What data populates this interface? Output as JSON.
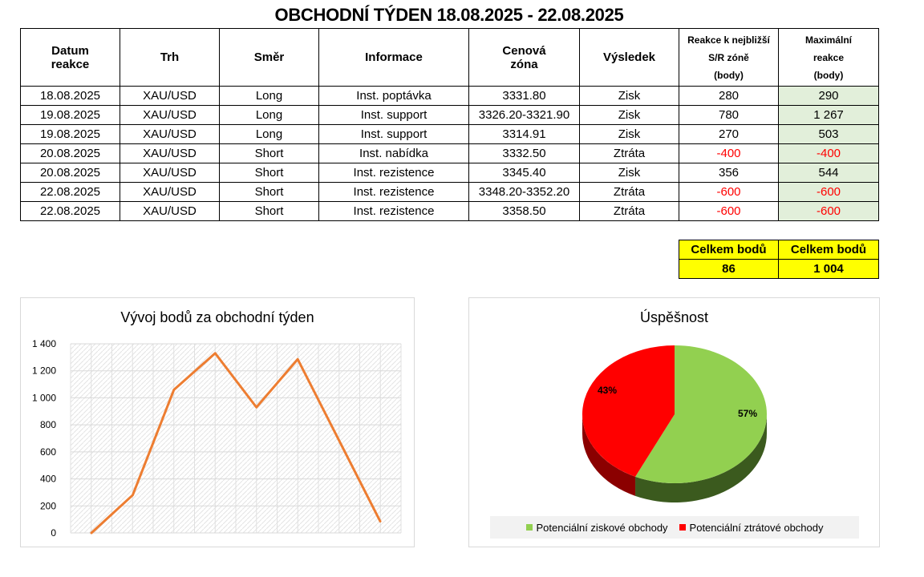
{
  "title": "OBCHODNÍ TÝDEN 18.08.2025 - 22.08.2025",
  "table": {
    "headers": {
      "datum_1": "Datum",
      "datum_2": "reakce",
      "trh": "Trh",
      "smer": "Směr",
      "informace": "Informace",
      "zona_1": "Cenová",
      "zona_2": "zóna",
      "vysledek": "Výsledek",
      "reakce_1": "Reakce k nejbližší",
      "reakce_2": "S/R zóně",
      "reakce_3": "(body)",
      "max_1": "Maximální",
      "max_2": "reakce",
      "max_3": "(body)"
    },
    "rows": [
      {
        "date": "18.08.2025",
        "market": "XAU/USD",
        "direction": "Long",
        "info": "Inst. poptávka",
        "zone": "3331.80",
        "result": "Zisk",
        "reaction": "280",
        "max": "290"
      },
      {
        "date": "19.08.2025",
        "market": "XAU/USD",
        "direction": "Long",
        "info": "Inst. support",
        "zone": "3326.20-3321.90",
        "result": "Zisk",
        "reaction": "780",
        "max": "1 267"
      },
      {
        "date": "19.08.2025",
        "market": "XAU/USD",
        "direction": "Long",
        "info": "Inst. support",
        "zone": "3314.91",
        "result": "Zisk",
        "reaction": "270",
        "max": "503"
      },
      {
        "date": "20.08.2025",
        "market": "XAU/USD",
        "direction": "Short",
        "info": "Inst. nabídka",
        "zone": "3332.50",
        "result": "Ztráta",
        "reaction": "-400",
        "max": "-400"
      },
      {
        "date": "20.08.2025",
        "market": "XAU/USD",
        "direction": "Short",
        "info": "Inst. rezistence",
        "zone": "3345.40",
        "result": "Zisk",
        "reaction": "356",
        "max": "544"
      },
      {
        "date": "22.08.2025",
        "market": "XAU/USD",
        "direction": "Short",
        "info": "Inst. rezistence",
        "zone": "3348.20-3352.20",
        "result": "Ztráta",
        "reaction": "-600",
        "max": "-600"
      },
      {
        "date": "22.08.2025",
        "market": "XAU/USD",
        "direction": "Short",
        "info": "Inst. rezistence",
        "zone": "3358.50",
        "result": "Ztráta",
        "reaction": "-600",
        "max": "-600"
      }
    ]
  },
  "totals": {
    "label_1": "Celkem bodů",
    "value_1": "86",
    "label_2": "Celkem bodů",
    "value_2": "1 004"
  },
  "colors": {
    "line": "#ed7d31",
    "pie_win": "#92d050",
    "pie_win_dark": "#3b5a1e",
    "pie_loss": "#ff0000",
    "pie_loss_dark": "#8b0000",
    "max_col_bg": "#e2efda",
    "totals_bg": "#ffff00"
  },
  "chart_data": [
    {
      "type": "line",
      "title": "Vývoj bodů za obchodní týden",
      "x": [
        0,
        1,
        2,
        3,
        4,
        5,
        6,
        7
      ],
      "series": [
        {
          "values": [
            0,
            280,
            1060,
            1330,
            930,
            1286,
            686,
            86
          ]
        }
      ],
      "ylim": [
        0,
        1400
      ],
      "yticks": [
        "0",
        "200",
        "400",
        "600",
        "800",
        "1 000",
        "1 200",
        "1 400"
      ],
      "ytick_values": [
        0,
        200,
        400,
        600,
        800,
        1000,
        1200,
        1400
      ],
      "grid": true
    },
    {
      "type": "pie",
      "title": "Úspěšnost",
      "labels": [
        "Potenciální ziskové obchody",
        "Potenciální ztrátové obchody"
      ],
      "values": [
        57,
        43
      ],
      "value_labels": [
        "57%",
        "43%"
      ],
      "legend": "bottom"
    }
  ]
}
